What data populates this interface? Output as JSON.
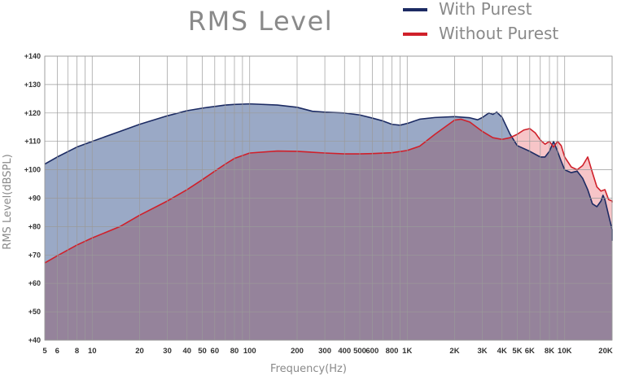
{
  "chart_data": {
    "type": "area",
    "title": "RMS Level",
    "xlabel": "Frequency(Hz)",
    "ylabel": "RMS Level(dBSPL)",
    "xscale": "log",
    "xlim": [
      5,
      20000
    ],
    "ylim": [
      40,
      140
    ],
    "yticks": [
      {
        "v": 40,
        "label": "+40"
      },
      {
        "v": 50,
        "label": "+50"
      },
      {
        "v": 60,
        "label": "+60"
      },
      {
        "v": 70,
        "label": "+70"
      },
      {
        "v": 80,
        "label": "+80"
      },
      {
        "v": 90,
        "label": "+90"
      },
      {
        "v": 100,
        "label": "+100"
      },
      {
        "v": 110,
        "label": "+110"
      },
      {
        "v": 120,
        "label": "+120"
      },
      {
        "v": 130,
        "label": "+130"
      },
      {
        "v": 140,
        "label": "+140"
      }
    ],
    "xticks": [
      {
        "v": 5,
        "label": "5"
      },
      {
        "v": 6,
        "label": "6"
      },
      {
        "v": 8,
        "label": "8"
      },
      {
        "v": 10,
        "label": "10"
      },
      {
        "v": 20,
        "label": "20"
      },
      {
        "v": 30,
        "label": "30"
      },
      {
        "v": 40,
        "label": "40"
      },
      {
        "v": 50,
        "label": "50"
      },
      {
        "v": 60,
        "label": "60"
      },
      {
        "v": 80,
        "label": "80"
      },
      {
        "v": 100,
        "label": "100"
      },
      {
        "v": 200,
        "label": "200"
      },
      {
        "v": 300,
        "label": "300"
      },
      {
        "v": 400,
        "label": "400"
      },
      {
        "v": 500,
        "label": "500"
      },
      {
        "v": 600,
        "label": "600"
      },
      {
        "v": 800,
        "label": "800"
      },
      {
        "v": 1000,
        "label": "1K"
      },
      {
        "v": 2000,
        "label": "2K"
      },
      {
        "v": 3000,
        "label": "3K"
      },
      {
        "v": 4000,
        "label": "4K"
      },
      {
        "v": 5000,
        "label": "5K"
      },
      {
        "v": 6000,
        "label": "6K"
      },
      {
        "v": 8000,
        "label": "8K"
      },
      {
        "v": 10000,
        "label": "10K"
      },
      {
        "v": 20000,
        "label": "20K"
      }
    ],
    "grid_x": [
      5,
      6,
      7,
      8,
      9,
      10,
      20,
      30,
      40,
      50,
      60,
      70,
      80,
      90,
      100,
      200,
      300,
      400,
      500,
      600,
      700,
      800,
      900,
      1000,
      2000,
      3000,
      4000,
      5000,
      6000,
      7000,
      8000,
      9000,
      10000,
      20000
    ],
    "grid_y": [
      40,
      50,
      60,
      70,
      80,
      90,
      100,
      110,
      120,
      130,
      140
    ],
    "legend_position": "top-right",
    "series": [
      {
        "name": "With Purest",
        "color": "#1c2b63",
        "fill": "#9aa9c6",
        "points": [
          [
            5,
            102
          ],
          [
            6,
            104.5
          ],
          [
            8,
            108
          ],
          [
            10,
            110
          ],
          [
            15,
            113.5
          ],
          [
            20,
            116
          ],
          [
            30,
            119
          ],
          [
            40,
            120.8
          ],
          [
            50,
            121.7
          ],
          [
            60,
            122.3
          ],
          [
            70,
            122.8
          ],
          [
            80,
            123
          ],
          [
            100,
            123.2
          ],
          [
            150,
            122.8
          ],
          [
            200,
            122
          ],
          [
            250,
            120.6
          ],
          [
            300,
            120.3
          ],
          [
            400,
            120
          ],
          [
            500,
            119.3
          ],
          [
            600,
            118.2
          ],
          [
            700,
            117.2
          ],
          [
            800,
            116
          ],
          [
            900,
            115.7
          ],
          [
            1000,
            116.3
          ],
          [
            1200,
            117.8
          ],
          [
            1500,
            118.4
          ],
          [
            2000,
            118.7
          ],
          [
            2500,
            118.3
          ],
          [
            2800,
            117.6
          ],
          [
            3000,
            118.4
          ],
          [
            3300,
            120
          ],
          [
            3500,
            119.5
          ],
          [
            3700,
            120.3
          ],
          [
            4000,
            118.5
          ],
          [
            4500,
            112.5
          ],
          [
            5000,
            108.5
          ],
          [
            6000,
            106.5
          ],
          [
            7000,
            104.5
          ],
          [
            7500,
            104.5
          ],
          [
            8000,
            106.5
          ],
          [
            8500,
            110
          ],
          [
            9000,
            106.5
          ],
          [
            9500,
            103
          ],
          [
            10000,
            100
          ],
          [
            11000,
            99
          ],
          [
            12000,
            99.5
          ],
          [
            13000,
            97
          ],
          [
            14000,
            93
          ],
          [
            15000,
            88
          ],
          [
            16000,
            87
          ],
          [
            17000,
            89
          ],
          [
            17500,
            91
          ],
          [
            18000,
            89.5
          ],
          [
            19000,
            84
          ],
          [
            20000,
            79
          ],
          [
            20500,
            75
          ]
        ]
      },
      {
        "name": "Without Purest",
        "color": "#d0202a",
        "fill": "#f3adb0",
        "points": [
          [
            5,
            67.2
          ],
          [
            6,
            69.7
          ],
          [
            8,
            73.5
          ],
          [
            10,
            76
          ],
          [
            15,
            80
          ],
          [
            20,
            84
          ],
          [
            30,
            89
          ],
          [
            40,
            93
          ],
          [
            50,
            96.5
          ],
          [
            60,
            99.5
          ],
          [
            70,
            102
          ],
          [
            80,
            104
          ],
          [
            100,
            105.9
          ],
          [
            150,
            106.6
          ],
          [
            200,
            106.5
          ],
          [
            300,
            105.9
          ],
          [
            400,
            105.6
          ],
          [
            500,
            105.6
          ],
          [
            600,
            105.7
          ],
          [
            800,
            106
          ],
          [
            1000,
            106.8
          ],
          [
            1200,
            108.3
          ],
          [
            1500,
            112.5
          ],
          [
            2000,
            117.5
          ],
          [
            2200,
            117.8
          ],
          [
            2500,
            116.8
          ],
          [
            3000,
            113.5
          ],
          [
            3500,
            111.3
          ],
          [
            4000,
            110.7
          ],
          [
            4500,
            111.3
          ],
          [
            5000,
            112.5
          ],
          [
            5500,
            114
          ],
          [
            6000,
            114.5
          ],
          [
            6500,
            113
          ],
          [
            7000,
            110.5
          ],
          [
            7500,
            109
          ],
          [
            8000,
            110
          ],
          [
            8500,
            108
          ],
          [
            9000,
            110
          ],
          [
            9500,
            108.5
          ],
          [
            10000,
            104.5
          ],
          [
            11000,
            101
          ],
          [
            12000,
            100
          ],
          [
            13000,
            101.5
          ],
          [
            14000,
            104.5
          ],
          [
            15000,
            99
          ],
          [
            16000,
            94
          ],
          [
            17000,
            92.5
          ],
          [
            18000,
            93
          ],
          [
            19000,
            89.5
          ],
          [
            20000,
            89
          ],
          [
            20500,
            88.5
          ]
        ]
      }
    ]
  }
}
